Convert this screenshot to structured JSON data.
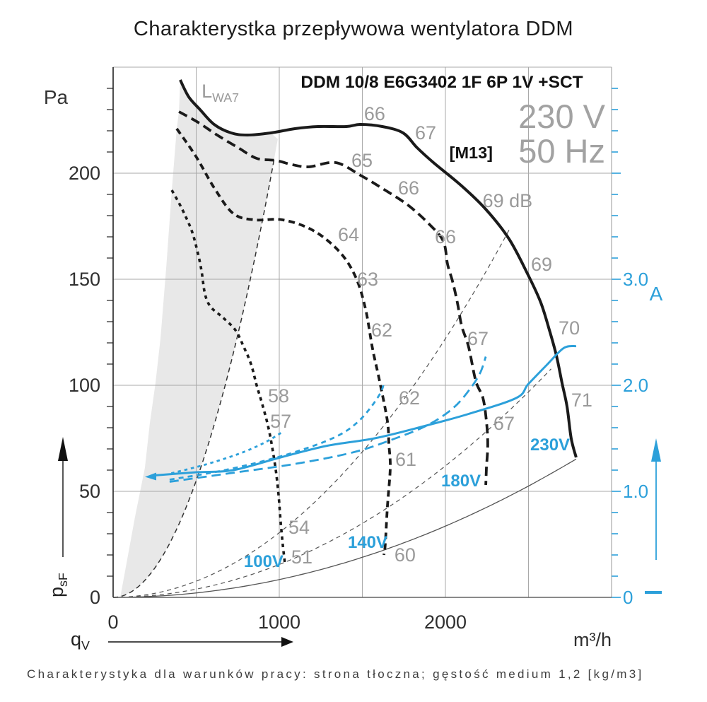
{
  "title": "Charakterystka przepływowa wentylatora DDM",
  "footer": "Charakterystyka dla warunków pracy: strona tłoczna; gęstość medium 1,2 [kg/m3]",
  "header": {
    "model": "DDM 10/8 E6G3402 1F 6P 1V +SCT",
    "voltage": "230 V",
    "frequency": "50 Hz",
    "code": "[M13]"
  },
  "colors": {
    "blue": "#2CA0DA",
    "label_gray": "#9a9a9a",
    "big_gray": "#a2a2a2",
    "curve_black": "#1a1a1a",
    "grid": "#a9a9a9",
    "axis_dark": "#2e2e2e",
    "thin_curve": "#555555",
    "shade": "#e8e8e8",
    "tick_text": "#2f2f2f"
  },
  "axes": {
    "pressure": {
      "unit": "Pa",
      "symbol_main": "p",
      "symbol_sub": "sF",
      "ticks": [
        {
          "v": 0,
          "label": "0"
        },
        {
          "v": 50,
          "label": "50"
        },
        {
          "v": 100,
          "label": "100"
        },
        {
          "v": 150,
          "label": "150"
        },
        {
          "v": 200,
          "label": "200"
        }
      ],
      "minor_step": 10,
      "minor_max": 240,
      "range": [
        0,
        250
      ]
    },
    "flow": {
      "unit": "m³/h",
      "symbol_main": "q",
      "symbol_sub": "V",
      "ticks": [
        {
          "v": 0,
          "label": "0"
        },
        {
          "v": 1000,
          "label": "1000"
        },
        {
          "v": 2000,
          "label": "2000"
        }
      ],
      "grid_step": 500,
      "range": [
        0,
        3000
      ]
    },
    "current": {
      "unit": "A",
      "ticks": [
        {
          "v": 0,
          "label": "0"
        },
        {
          "v": 1,
          "label": "1.0"
        },
        {
          "v": 2,
          "label": "2.0"
        },
        {
          "v": 3,
          "label": "3.0"
        }
      ],
      "minor_step": 0.2,
      "minor_max": 4.8,
      "range": [
        0,
        5
      ]
    }
  },
  "chart_data": {
    "type": "line",
    "xlabel": "qV (m³/h)",
    "ylabel_left": "psF (Pa)",
    "ylabel_right": "I (A)",
    "xlim": [
      0,
      3000
    ],
    "ylim_left": [
      0,
      250
    ],
    "ylim_right": [
      0,
      5
    ],
    "grid": true,
    "curves": [
      {
        "id": "pressure-230v",
        "name": "230V pressure",
        "axis": "pressure",
        "color": "black",
        "width": 4,
        "dash": null,
        "points": [
          [
            404,
            244
          ],
          [
            455,
            236
          ],
          [
            523,
            230
          ],
          [
            608,
            223
          ],
          [
            710,
            219
          ],
          [
            808,
            218
          ],
          [
            949,
            219
          ],
          [
            1094,
            221
          ],
          [
            1234,
            222
          ],
          [
            1404,
            222
          ],
          [
            1489,
            223
          ],
          [
            1620,
            222
          ],
          [
            1745,
            219
          ],
          [
            1830,
            212
          ],
          [
            1928,
            205
          ],
          [
            2098,
            194
          ],
          [
            2243,
            183
          ],
          [
            2383,
            169
          ],
          [
            2498,
            152
          ],
          [
            2574,
            139
          ],
          [
            2626,
            126
          ],
          [
            2668,
            114
          ],
          [
            2702,
            101
          ],
          [
            2732,
            90
          ],
          [
            2757,
            75
          ],
          [
            2787,
            66
          ]
        ]
      },
      {
        "id": "pressure-180v",
        "name": "180V pressure",
        "axis": "pressure",
        "color": "black",
        "width": 3.8,
        "dash": "13 7",
        "points": [
          [
            396,
            229
          ],
          [
            511,
            224
          ],
          [
            626,
            218
          ],
          [
            753,
            212
          ],
          [
            864,
            207
          ],
          [
            979,
            206
          ],
          [
            1080,
            204
          ],
          [
            1179,
            203
          ],
          [
            1340,
            205
          ],
          [
            1489,
            199
          ],
          [
            1617,
            193
          ],
          [
            1774,
            185
          ],
          [
            1902,
            176
          ],
          [
            1987,
            168
          ],
          [
            2013,
            157
          ],
          [
            2043,
            149
          ],
          [
            2072,
            139
          ],
          [
            2098,
            128
          ],
          [
            2140,
            118
          ],
          [
            2183,
            102
          ],
          [
            2226,
            94
          ],
          [
            2247,
            83
          ],
          [
            2255,
            72
          ],
          [
            2247,
            61
          ],
          [
            2243,
            53
          ]
        ]
      },
      {
        "id": "pressure-140v",
        "name": "140V pressure",
        "axis": "pressure",
        "color": "black",
        "width": 3.8,
        "dash": "9 6",
        "points": [
          [
            383,
            221
          ],
          [
            498,
            208
          ],
          [
            609,
            193
          ],
          [
            723,
            181
          ],
          [
            851,
            178
          ],
          [
            1021,
            178
          ],
          [
            1204,
            173
          ],
          [
            1362,
            163
          ],
          [
            1460,
            151
          ],
          [
            1519,
            136
          ],
          [
            1562,
            117
          ],
          [
            1604,
            102
          ],
          [
            1651,
            83
          ],
          [
            1660,
            72
          ],
          [
            1668,
            61
          ],
          [
            1651,
            43
          ],
          [
            1638,
            25
          ],
          [
            1630,
            20
          ]
        ]
      },
      {
        "id": "pressure-100v",
        "name": "100V pressure",
        "axis": "pressure",
        "color": "black",
        "width": 3.6,
        "dash": "5 5.5",
        "points": [
          [
            353,
            192
          ],
          [
            396,
            186
          ],
          [
            434,
            180
          ],
          [
            477,
            172
          ],
          [
            511,
            162
          ],
          [
            532,
            154
          ],
          [
            553,
            143
          ],
          [
            587,
            137
          ],
          [
            660,
            132
          ],
          [
            736,
            126
          ],
          [
            787,
            118
          ],
          [
            830,
            110
          ],
          [
            864,
            100
          ],
          [
            898,
            91
          ],
          [
            932,
            81
          ],
          [
            957,
            71
          ],
          [
            979,
            60
          ],
          [
            996,
            48
          ],
          [
            1009,
            35
          ],
          [
            1021,
            25
          ],
          [
            1034,
            16
          ]
        ]
      },
      {
        "id": "current-230v",
        "name": "230V current",
        "axis": "current",
        "color": "blue",
        "width": 3,
        "dash": null,
        "start_arrow": true,
        "points": [
          [
            247,
            1.15
          ],
          [
            500,
            1.18
          ],
          [
            723,
            1.2
          ],
          [
            1008,
            1.32
          ],
          [
            1289,
            1.43
          ],
          [
            1574,
            1.5
          ],
          [
            1860,
            1.61
          ],
          [
            2140,
            1.73
          ],
          [
            2426,
            1.88
          ],
          [
            2498,
            2.01
          ],
          [
            2609,
            2.19
          ],
          [
            2711,
            2.35
          ],
          [
            2787,
            2.37
          ]
        ]
      },
      {
        "id": "current-180v",
        "name": "180V current",
        "axis": "current",
        "color": "blue",
        "width": 2.8,
        "dash": "13 7",
        "points": [
          [
            340,
            1.09
          ],
          [
            700,
            1.17
          ],
          [
            1100,
            1.26
          ],
          [
            1450,
            1.37
          ],
          [
            1700,
            1.5
          ],
          [
            1900,
            1.63
          ],
          [
            2050,
            1.79
          ],
          [
            2150,
            1.97
          ],
          [
            2210,
            2.12
          ],
          [
            2243,
            2.27
          ]
        ]
      },
      {
        "id": "current-140v",
        "name": "140V current",
        "axis": "current",
        "color": "blue",
        "width": 2.8,
        "dash": "7 6",
        "points": [
          [
            340,
            1.11
          ],
          [
            640,
            1.19
          ],
          [
            940,
            1.3
          ],
          [
            1190,
            1.42
          ],
          [
            1360,
            1.53
          ],
          [
            1470,
            1.65
          ],
          [
            1550,
            1.79
          ],
          [
            1610,
            1.93
          ],
          [
            1630,
            2.02
          ]
        ]
      },
      {
        "id": "current-100v",
        "name": "100V current",
        "axis": "current",
        "color": "blue",
        "width": 2.8,
        "dash": "4.5 5",
        "points": [
          [
            350,
            1.17
          ],
          [
            550,
            1.25
          ],
          [
            750,
            1.35
          ],
          [
            900,
            1.45
          ],
          [
            1020,
            1.56
          ]
        ]
      }
    ],
    "system_curves": [
      {
        "id": "system-curve-main",
        "k": 8.4e-06,
        "q_end": 2787,
        "style": "solid",
        "width": 1.3
      },
      {
        "id": "noise-limit-parabola",
        "k": 0.00022,
        "q_end": 991,
        "style": "dashed",
        "width": 1.5
      },
      {
        "id": "system-parabola-69db",
        "k": 3.05e-05,
        "q_end": 2440,
        "style": "dashed",
        "width": 1.2
      },
      {
        "id": "system-parabola-67db",
        "k": 1.55e-05,
        "q_end": 2690,
        "style": "dashed",
        "width": 1.2
      }
    ],
    "shaded_region": {
      "left_boundary": [
        [
          404,
          244
        ],
        [
          396,
          229
        ],
        [
          383,
          221
        ],
        [
          353,
          192
        ],
        [
          319,
          155
        ],
        [
          285,
          122
        ],
        [
          255,
          101
        ],
        [
          221,
          82
        ],
        [
          191,
          61
        ],
        [
          132,
          38
        ],
        [
          85,
          18
        ],
        [
          43,
          0
        ]
      ],
      "right_boundary_k": 0.00022,
      "top_q_end": 991
    },
    "region_label": {
      "main": "L",
      "sub": "WA7",
      "q": 626,
      "p": 239
    },
    "noise_labels": [
      {
        "text": "66",
        "q": 1574,
        "p": 228
      },
      {
        "text": "67",
        "q": 1881,
        "p": 219
      },
      {
        "text": "65",
        "q": 1498,
        "p": 206
      },
      {
        "text": "66",
        "q": 1779,
        "p": 193
      },
      {
        "text": "69 dB",
        "q": 2374,
        "p": 187
      },
      {
        "text": "64",
        "q": 1417,
        "p": 171
      },
      {
        "text": "66",
        "q": 2000,
        "p": 170
      },
      {
        "text": "69",
        "q": 2579,
        "p": 157
      },
      {
        "text": "63",
        "q": 1532,
        "p": 150
      },
      {
        "text": "62",
        "q": 1617,
        "p": 126
      },
      {
        "text": "70",
        "q": 2745,
        "p": 127
      },
      {
        "text": "58",
        "q": 996,
        "p": 95
      },
      {
        "text": "57",
        "q": 1009,
        "p": 83
      },
      {
        "text": "62",
        "q": 1783,
        "p": 94
      },
      {
        "text": "67",
        "q": 2196,
        "p": 122
      },
      {
        "text": "71",
        "q": 2821,
        "p": 93
      },
      {
        "text": "67",
        "q": 2353,
        "p": 82
      },
      {
        "text": "61",
        "q": 1762,
        "p": 65
      },
      {
        "text": "54",
        "q": 1119,
        "p": 33
      },
      {
        "text": "51",
        "q": 1136,
        "p": 19
      },
      {
        "text": "60",
        "q": 1757,
        "p": 20
      }
    ],
    "voltage_labels": [
      {
        "text": "230V",
        "q": 2630,
        "p": 72
      },
      {
        "text": "180V",
        "q": 2094,
        "p": 55
      },
      {
        "text": "140V",
        "q": 1532,
        "p": 26
      },
      {
        "text": "100V",
        "q": 906,
        "p": 17
      }
    ]
  }
}
